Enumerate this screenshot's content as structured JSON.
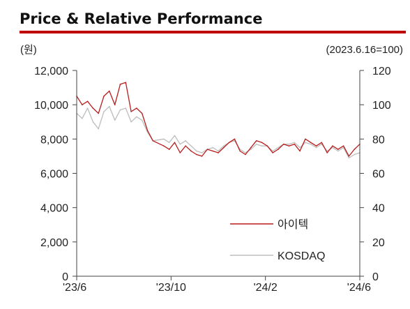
{
  "chart_data": {
    "type": "line",
    "title": "Price & Relative Performance",
    "left_unit": "(원)",
    "right_unit": "(2023.6.16=100)",
    "x_ticks": [
      "'23/6",
      "'23/10",
      "'24/2",
      "'24/6"
    ],
    "xlim": [
      "2023-06-16",
      "2024-06-14"
    ],
    "y_left": {
      "ticks": [
        "0",
        "2,000",
        "4,000",
        "6,000",
        "8,000",
        "10,000",
        "12,000"
      ],
      "ylim": [
        0,
        12000
      ]
    },
    "y_right": {
      "ticks": [
        "0",
        "20",
        "40",
        "60",
        "80",
        "100",
        "120"
      ],
      "ylim": [
        0,
        120
      ]
    },
    "legend": [
      "아이텍",
      "KOSDAQ"
    ],
    "colors": {
      "accent": "#c00000",
      "price": "#b81c1c",
      "kosdaq": "#bdbdbd",
      "axis": "#444444"
    },
    "series": [
      {
        "name": "아이텍",
        "axis": "left",
        "color": "#b81c1c",
        "x": [
          "2023-06-16",
          "2023-06-23",
          "2023-06-30",
          "2023-07-07",
          "2023-07-14",
          "2023-07-21",
          "2023-07-28",
          "2023-08-04",
          "2023-08-11",
          "2023-08-18",
          "2023-08-25",
          "2023-09-01",
          "2023-09-08",
          "2023-09-15",
          "2023-09-22",
          "2023-10-06",
          "2023-10-13",
          "2023-10-20",
          "2023-10-27",
          "2023-11-03",
          "2023-11-10",
          "2023-11-17",
          "2023-11-24",
          "2023-12-01",
          "2023-12-08",
          "2023-12-15",
          "2023-12-22",
          "2023-12-29",
          "2024-01-05",
          "2024-01-12",
          "2024-01-19",
          "2024-01-26",
          "2024-02-02",
          "2024-02-09",
          "2024-02-16",
          "2024-02-23",
          "2024-03-01",
          "2024-03-08",
          "2024-03-15",
          "2024-03-22",
          "2024-03-29",
          "2024-04-05",
          "2024-04-12",
          "2024-04-19",
          "2024-04-26",
          "2024-05-03",
          "2024-05-10",
          "2024-05-17",
          "2024-05-24",
          "2024-05-31",
          "2024-06-07",
          "2024-06-14"
        ],
        "values": [
          10500,
          10000,
          10200,
          9800,
          9500,
          10500,
          10800,
          10000,
          11200,
          11300,
          9600,
          9800,
          9500,
          8500,
          7900,
          7600,
          7400,
          7800,
          7200,
          7600,
          7300,
          7100,
          7000,
          7400,
          7300,
          7200,
          7500,
          7800,
          8000,
          7300,
          7100,
          7500,
          7900,
          7800,
          7600,
          7200,
          7400,
          7700,
          7600,
          7700,
          7300,
          8000,
          7800,
          7600,
          7800,
          7200,
          7600,
          7400,
          7600,
          7000,
          7400,
          7700
        ]
      },
      {
        "name": "KOSDAQ",
        "axis": "right",
        "color": "#bdbdbd",
        "x": [
          "2023-06-16",
          "2023-06-23",
          "2023-06-30",
          "2023-07-07",
          "2023-07-14",
          "2023-07-21",
          "2023-07-28",
          "2023-08-04",
          "2023-08-11",
          "2023-08-18",
          "2023-08-25",
          "2023-09-01",
          "2023-09-08",
          "2023-09-15",
          "2023-09-22",
          "2023-10-06",
          "2023-10-13",
          "2023-10-20",
          "2023-10-27",
          "2023-11-03",
          "2023-11-10",
          "2023-11-17",
          "2023-11-24",
          "2023-12-01",
          "2023-12-08",
          "2023-12-15",
          "2023-12-22",
          "2023-12-29",
          "2024-01-05",
          "2024-01-12",
          "2024-01-19",
          "2024-01-26",
          "2024-02-02",
          "2024-02-09",
          "2024-02-16",
          "2024-02-23",
          "2024-03-01",
          "2024-03-08",
          "2024-03-15",
          "2024-03-22",
          "2024-03-29",
          "2024-04-05",
          "2024-04-12",
          "2024-04-19",
          "2024-04-26",
          "2024-05-03",
          "2024-05-10",
          "2024-05-17",
          "2024-05-24",
          "2024-05-31",
          "2024-06-07",
          "2024-06-14"
        ],
        "values": [
          95,
          92,
          98,
          90,
          86,
          96,
          99,
          91,
          97,
          98,
          90,
          93,
          91,
          84,
          79,
          80,
          78,
          82,
          77,
          79,
          76,
          73,
          72,
          74,
          75,
          73,
          76,
          78,
          79,
          74,
          72,
          74,
          77,
          76,
          76,
          73,
          75,
          77,
          77,
          78,
          75,
          78,
          77,
          75,
          77,
          73,
          75,
          73,
          75,
          69,
          71,
          72
        ]
      }
    ]
  }
}
